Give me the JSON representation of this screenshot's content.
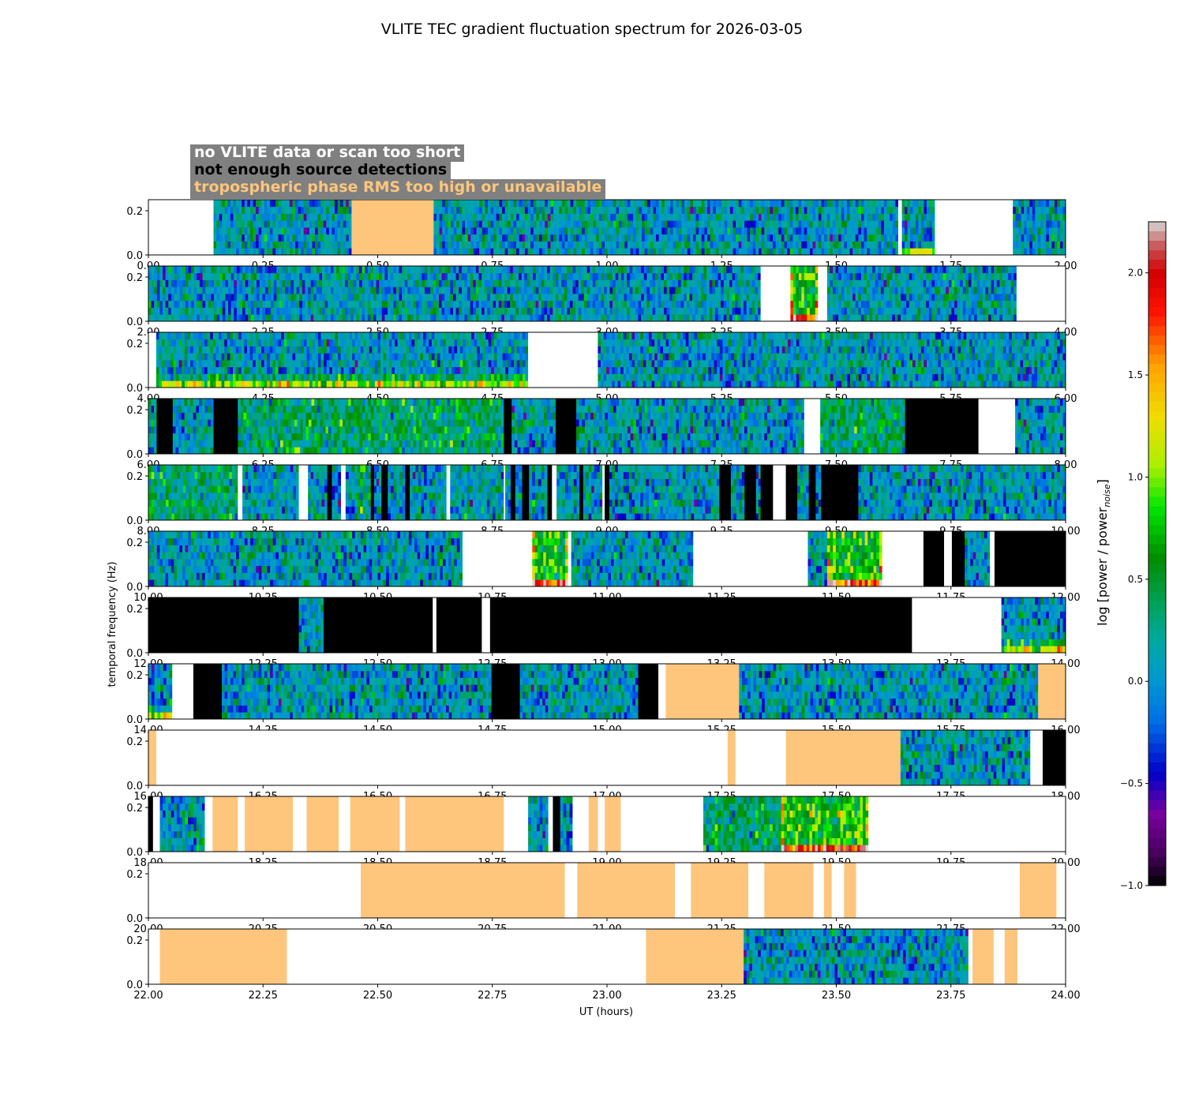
{
  "chart_data": {
    "type": "heatmap",
    "title": "VLITE TEC gradient fluctuation spectrum for 2026-03-05",
    "xlabel": "UT (hours)",
    "ylabel": "temporal frequency (Hz)",
    "ylim": [
      0,
      0.25
    ],
    "yticks": [
      "0.0",
      "0.2"
    ],
    "colorbar": {
      "label": "log [power / power",
      "label_sub": "noise",
      "label_end": "]",
      "range": [
        -1.0,
        2.25
      ],
      "ticks": [
        "2.0",
        "1.5",
        "1.0",
        "0.5",
        "0.0",
        "−0.5",
        "−1.0"
      ],
      "tick_values": [
        2.0,
        1.5,
        1.0,
        0.5,
        0.0,
        -0.5,
        -1.0
      ]
    },
    "legend": [
      {
        "label": "no VLITE data or scan too short",
        "text_color": "#ffffff"
      },
      {
        "label": "not enough source detections",
        "text_color": "#000000"
      },
      {
        "label": "tropospheric phase RMS too high or unavailable",
        "text_color": "#fdc67c"
      }
    ],
    "category_colors": {
      "nodata": "#ffffff",
      "nodet": "#000000",
      "trop": "#fdc67c"
    },
    "panels": [
      {
        "start": 0,
        "xticks": [
          "0.00",
          "0.25",
          "0.50",
          "0.75",
          "1.00",
          "1.25",
          "1.50",
          "1.75",
          "2.00"
        ],
        "segments": [
          [
            0.0,
            0.142,
            "nodata"
          ],
          [
            0.142,
            0.443,
            "spec",
            "q"
          ],
          [
            0.443,
            0.622,
            "trop"
          ],
          [
            0.622,
            1.635,
            "spec",
            "q"
          ],
          [
            1.635,
            1.643,
            "nodata"
          ],
          [
            1.643,
            1.715,
            "spec",
            "a"
          ],
          [
            1.715,
            1.885,
            "nodata"
          ],
          [
            1.885,
            2.0,
            "spec",
            "q"
          ]
        ]
      },
      {
        "start": 2,
        "xticks": [
          "2.00",
          "2.25",
          "2.50",
          "2.75",
          "3.00",
          "3.25",
          "3.50",
          "3.75",
          "4.00"
        ],
        "segments": [
          [
            2.0,
            3.335,
            "spec",
            "q"
          ],
          [
            3.335,
            3.4,
            "nodata"
          ],
          [
            3.4,
            3.46,
            "spec",
            "s"
          ],
          [
            3.46,
            3.48,
            "nodata"
          ],
          [
            3.48,
            3.893,
            "spec",
            "q"
          ],
          [
            3.893,
            4.0,
            "nodata"
          ]
        ]
      },
      {
        "start": 4,
        "xticks": [
          "4.00",
          "4.25",
          "4.50",
          "4.75",
          "5.00",
          "5.25",
          "5.50",
          "5.75",
          "6.00"
        ],
        "segments": [
          [
            4.0,
            4.017,
            "nodata"
          ],
          [
            4.017,
            4.828,
            "spec",
            "b"
          ],
          [
            4.828,
            4.98,
            "nodata"
          ],
          [
            4.98,
            6.0,
            "spec",
            "q"
          ]
        ]
      },
      {
        "start": 6,
        "xticks": [
          "6.00",
          "6.25",
          "6.50",
          "6.75",
          "7.00",
          "7.25",
          "7.50",
          "7.75",
          "8.00"
        ],
        "segments": [
          [
            6.0,
            6.018,
            "spec",
            "q"
          ],
          [
            6.018,
            6.053,
            "nodet"
          ],
          [
            6.053,
            6.142,
            "spec",
            "q"
          ],
          [
            6.142,
            6.195,
            "nodet"
          ],
          [
            6.195,
            6.775,
            "spec",
            "g"
          ],
          [
            6.775,
            6.792,
            "nodet"
          ],
          [
            6.792,
            6.888,
            "spec",
            "q"
          ],
          [
            6.888,
            6.933,
            "nodet"
          ],
          [
            6.933,
            7.43,
            "spec",
            "q"
          ],
          [
            7.43,
            7.465,
            "nodata"
          ],
          [
            7.465,
            7.65,
            "spec",
            "g"
          ],
          [
            7.65,
            7.81,
            "nodet"
          ],
          [
            7.81,
            7.89,
            "nodata"
          ],
          [
            7.89,
            8.0,
            "spec",
            "q"
          ]
        ]
      },
      {
        "start": 8,
        "xticks": [
          "8.00",
          "8.25",
          "8.50",
          "8.75",
          "9.00",
          "9.25",
          "9.50",
          "9.75",
          "10.00"
        ],
        "segments": [
          [
            8.0,
            8.195,
            "spec",
            "g"
          ],
          [
            8.195,
            8.205,
            "nodata"
          ],
          [
            8.205,
            8.328,
            "spec",
            "q"
          ],
          [
            8.328,
            8.348,
            "nodata"
          ],
          [
            8.348,
            8.39,
            "spec",
            "q"
          ],
          [
            8.39,
            8.4,
            "nodet"
          ],
          [
            8.4,
            8.42,
            "spec",
            "q"
          ],
          [
            8.42,
            8.43,
            "nodata"
          ],
          [
            8.43,
            8.45,
            "spec",
            "q"
          ],
          [
            8.45,
            8.485,
            "spec",
            "g"
          ],
          [
            8.485,
            8.492,
            "nodet"
          ],
          [
            8.492,
            8.508,
            "spec",
            "q"
          ],
          [
            8.508,
            8.522,
            "nodet"
          ],
          [
            8.522,
            8.56,
            "spec",
            "q"
          ],
          [
            8.56,
            8.57,
            "nodet"
          ],
          [
            8.57,
            8.65,
            "spec",
            "q"
          ],
          [
            8.65,
            8.658,
            "nodata"
          ],
          [
            8.658,
            8.775,
            "spec",
            "q"
          ],
          [
            8.775,
            8.778,
            "nodata"
          ],
          [
            8.778,
            8.79,
            "spec",
            "q"
          ],
          [
            8.79,
            8.8,
            "nodet"
          ],
          [
            8.8,
            8.815,
            "spec",
            "q"
          ],
          [
            8.815,
            8.83,
            "nodet"
          ],
          [
            8.83,
            8.87,
            "spec",
            "q"
          ],
          [
            8.87,
            8.88,
            "nodet"
          ],
          [
            8.88,
            8.89,
            "nodata"
          ],
          [
            8.89,
            8.94,
            "spec",
            "q"
          ],
          [
            8.94,
            8.948,
            "nodet"
          ],
          [
            8.948,
            8.99,
            "spec",
            "q"
          ],
          [
            8.99,
            8.995,
            "nodata"
          ],
          [
            8.995,
            9.005,
            "nodet"
          ],
          [
            9.005,
            9.245,
            "spec",
            "q"
          ],
          [
            9.245,
            9.27,
            "nodet"
          ],
          [
            9.27,
            9.3,
            "spec",
            "q"
          ],
          [
            9.3,
            9.325,
            "nodet"
          ],
          [
            9.325,
            9.335,
            "spec",
            "q"
          ],
          [
            9.335,
            9.362,
            "nodet"
          ],
          [
            9.362,
            9.39,
            "nodata"
          ],
          [
            9.39,
            9.415,
            "nodet"
          ],
          [
            9.415,
            9.44,
            "spec",
            "q"
          ],
          [
            9.44,
            9.455,
            "nodet"
          ],
          [
            9.455,
            9.467,
            "spec",
            "q"
          ],
          [
            9.467,
            9.548,
            "nodet"
          ],
          [
            9.548,
            10.0,
            "spec",
            "q"
          ]
        ]
      },
      {
        "start": 10,
        "xticks": [
          "10.00",
          "10.25",
          "10.50",
          "10.75",
          "11.00",
          "11.25",
          "11.50",
          "11.75",
          "12.00"
        ],
        "segments": [
          [
            10.0,
            10.685,
            "spec",
            "q"
          ],
          [
            10.685,
            10.837,
            "nodata"
          ],
          [
            10.837,
            10.915,
            "spec",
            "s"
          ],
          [
            10.915,
            10.922,
            "nodata"
          ],
          [
            10.922,
            11.188,
            "spec",
            "q"
          ],
          [
            11.188,
            11.438,
            "nodata"
          ],
          [
            11.438,
            11.48,
            "spec",
            "q"
          ],
          [
            11.48,
            11.6,
            "spec",
            "s"
          ],
          [
            11.6,
            11.69,
            "nodata"
          ],
          [
            11.69,
            11.735,
            "nodet"
          ],
          [
            11.735,
            11.752,
            "nodata"
          ],
          [
            11.752,
            11.78,
            "nodet"
          ],
          [
            11.78,
            11.835,
            "spec",
            "q"
          ],
          [
            11.835,
            11.845,
            "nodata"
          ],
          [
            11.845,
            12.0,
            "nodet"
          ]
        ]
      },
      {
        "start": 12,
        "xticks": [
          "12.00",
          "12.25",
          "12.50",
          "12.75",
          "13.00",
          "13.25",
          "13.50",
          "13.75",
          "14.00"
        ],
        "segments": [
          [
            12.0,
            12.328,
            "nodet"
          ],
          [
            12.328,
            12.382,
            "spec",
            "q"
          ],
          [
            12.382,
            12.62,
            "nodet"
          ],
          [
            12.62,
            12.628,
            "nodata"
          ],
          [
            12.628,
            12.727,
            "nodet"
          ],
          [
            12.727,
            12.745,
            "nodata"
          ],
          [
            12.745,
            13.665,
            "nodet"
          ],
          [
            13.665,
            13.86,
            "nodata"
          ],
          [
            13.86,
            14.0,
            "spec",
            "b"
          ]
        ]
      },
      {
        "start": 14,
        "xticks": [
          "14.00",
          "14.25",
          "14.50",
          "14.75",
          "15.00",
          "15.25",
          "15.50",
          "15.75",
          "16.00"
        ],
        "segments": [
          [
            14.0,
            14.052,
            "spec",
            "b"
          ],
          [
            14.052,
            14.098,
            "nodata"
          ],
          [
            14.098,
            14.16,
            "nodet"
          ],
          [
            14.16,
            14.748,
            "spec",
            "q"
          ],
          [
            14.748,
            14.81,
            "nodet"
          ],
          [
            14.81,
            15.068,
            "spec",
            "q"
          ],
          [
            15.068,
            15.112,
            "nodet"
          ],
          [
            15.112,
            15.128,
            "nodata"
          ],
          [
            15.128,
            15.288,
            "trop"
          ],
          [
            15.288,
            15.94,
            "spec",
            "q"
          ],
          [
            15.94,
            16.0,
            "trop"
          ]
        ]
      },
      {
        "start": 16,
        "xticks": [
          "16.00",
          "16.25",
          "16.50",
          "16.75",
          "17.00",
          "17.25",
          "17.50",
          "17.75",
          "18.00"
        ],
        "segments": [
          [
            16.0,
            16.017,
            "trop"
          ],
          [
            16.017,
            17.263,
            "nodata"
          ],
          [
            17.263,
            17.28,
            "trop"
          ],
          [
            17.28,
            17.39,
            "nodata"
          ],
          [
            17.39,
            17.64,
            "trop"
          ],
          [
            17.64,
            17.923,
            "spec",
            "q"
          ],
          [
            17.923,
            17.95,
            "nodata"
          ],
          [
            17.95,
            18.0,
            "nodet"
          ]
        ]
      },
      {
        "start": 18,
        "xticks": [
          "18.00",
          "18.25",
          "18.50",
          "18.75",
          "19.00",
          "19.25",
          "19.50",
          "19.75",
          "20.00"
        ],
        "segments": [
          [
            18.0,
            18.01,
            "nodet"
          ],
          [
            18.01,
            18.025,
            "nodata"
          ],
          [
            18.025,
            18.123,
            "spec",
            "q"
          ],
          [
            18.123,
            18.14,
            "nodata"
          ],
          [
            18.14,
            18.195,
            "trop"
          ],
          [
            18.195,
            18.21,
            "nodata"
          ],
          [
            18.21,
            18.315,
            "trop"
          ],
          [
            18.315,
            18.345,
            "nodata"
          ],
          [
            18.345,
            18.415,
            "trop"
          ],
          [
            18.415,
            18.44,
            "nodata"
          ],
          [
            18.44,
            18.548,
            "trop"
          ],
          [
            18.548,
            18.56,
            "nodata"
          ],
          [
            18.56,
            18.775,
            "trop"
          ],
          [
            18.775,
            18.828,
            "nodata"
          ],
          [
            18.828,
            18.872,
            "spec",
            "q"
          ],
          [
            18.872,
            18.882,
            "nodata"
          ],
          [
            18.882,
            18.898,
            "nodet"
          ],
          [
            18.898,
            18.925,
            "spec",
            "q"
          ],
          [
            18.925,
            18.96,
            "nodata"
          ],
          [
            18.96,
            18.98,
            "trop"
          ],
          [
            18.98,
            18.995,
            "nodata"
          ],
          [
            18.995,
            19.03,
            "trop"
          ],
          [
            19.03,
            19.21,
            "nodata"
          ],
          [
            19.21,
            19.38,
            "spec",
            "g"
          ],
          [
            19.38,
            19.57,
            "spec",
            "s"
          ],
          [
            19.57,
            20.0,
            "nodata"
          ]
        ]
      },
      {
        "start": 20,
        "xticks": [
          "20.00",
          "20.25",
          "20.50",
          "20.75",
          "21.00",
          "21.25",
          "21.50",
          "21.75",
          "22.00"
        ],
        "segments": [
          [
            20.0,
            20.463,
            "nodata"
          ],
          [
            20.463,
            20.908,
            "trop"
          ],
          [
            20.908,
            20.935,
            "nodata"
          ],
          [
            20.935,
            21.148,
            "trop"
          ],
          [
            21.148,
            21.183,
            "nodata"
          ],
          [
            21.183,
            21.308,
            "trop"
          ],
          [
            21.308,
            21.343,
            "nodata"
          ],
          [
            21.343,
            21.45,
            "trop"
          ],
          [
            21.45,
            21.473,
            "nodata"
          ],
          [
            21.473,
            21.49,
            "trop"
          ],
          [
            21.49,
            21.517,
            "nodata"
          ],
          [
            21.517,
            21.543,
            "trop"
          ],
          [
            21.543,
            21.9,
            "nodata"
          ],
          [
            21.9,
            21.98,
            "trop"
          ],
          [
            21.98,
            22.0,
            "nodata"
          ]
        ]
      },
      {
        "start": 22,
        "xticks": [
          "22.00",
          "22.25",
          "22.50",
          "22.75",
          "23.00",
          "23.25",
          "23.50",
          "23.75",
          "24.00"
        ],
        "segments": [
          [
            22.0,
            22.025,
            "nodata"
          ],
          [
            22.025,
            22.302,
            "trop"
          ],
          [
            22.302,
            23.085,
            "nodata"
          ],
          [
            23.085,
            23.298,
            "trop"
          ],
          [
            23.298,
            23.788,
            "spec",
            "q"
          ],
          [
            23.788,
            23.797,
            "nodata"
          ],
          [
            23.797,
            23.843,
            "trop"
          ],
          [
            23.843,
            23.867,
            "nodata"
          ],
          [
            23.867,
            23.895,
            "trop"
          ],
          [
            23.895,
            24.0,
            "nodata"
          ]
        ]
      }
    ]
  }
}
